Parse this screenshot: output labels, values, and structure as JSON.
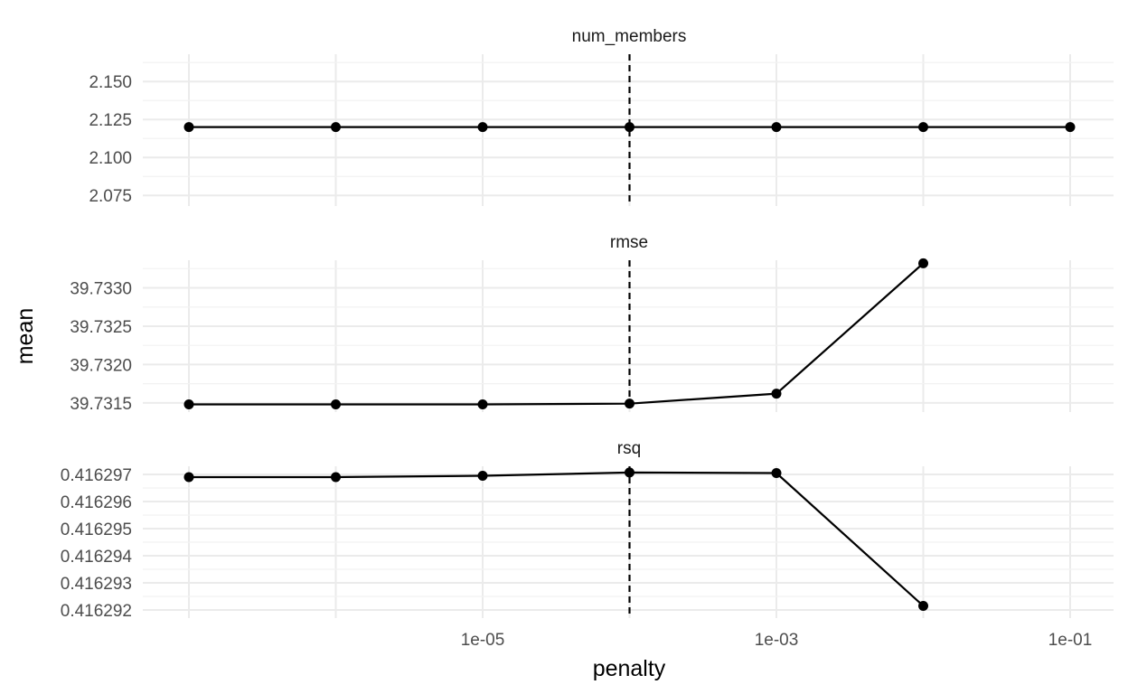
{
  "chart_data": {
    "type": "line",
    "xlabel": "penalty",
    "ylabel": "mean",
    "x_scale": "log10",
    "xlim": [
      1e-07,
      0.1
    ],
    "x_ticks": [
      {
        "value": 1e-05,
        "label": "1e-05"
      },
      {
        "value": 0.001,
        "label": "1e-03"
      },
      {
        "value": 0.1,
        "label": "1e-01"
      }
    ],
    "x": [
      1e-07,
      1e-06,
      1e-05,
      0.0001,
      0.001,
      0.01,
      0.1
    ],
    "vline": {
      "x": 0.0001,
      "style": "dashed"
    },
    "grid": true,
    "panels": [
      {
        "title": "num_members",
        "ylim": [
          2.068,
          2.168
        ],
        "y_ticks": [
          {
            "value": 2.075,
            "label": "2.075"
          },
          {
            "value": 2.1,
            "label": "2.100"
          },
          {
            "value": 2.125,
            "label": "2.125"
          },
          {
            "value": 2.15,
            "label": "2.150"
          }
        ],
        "values": [
          2.12,
          2.12,
          2.12,
          2.12,
          2.12,
          2.12,
          2.12
        ]
      },
      {
        "title": "rmse",
        "ylim": [
          39.73138,
          39.73336
        ],
        "y_ticks": [
          {
            "value": 39.7315,
            "label": "39.7315"
          },
          {
            "value": 39.732,
            "label": "39.7320"
          },
          {
            "value": 39.7325,
            "label": "39.7325"
          },
          {
            "value": 39.733,
            "label": "39.7330"
          }
        ],
        "values": [
          39.73148,
          39.73148,
          39.73148,
          39.73149,
          39.73162,
          39.73332,
          null
        ]
      },
      {
        "title": "rsq",
        "ylim": [
          0.4162917,
          0.4162973
        ],
        "y_ticks": [
          {
            "value": 0.416292,
            "label": "0.416292"
          },
          {
            "value": 0.416293,
            "label": "0.416293"
          },
          {
            "value": 0.416294,
            "label": "0.416294"
          },
          {
            "value": 0.416295,
            "label": "0.416295"
          },
          {
            "value": 0.416296,
            "label": "0.416296"
          },
          {
            "value": 0.416297,
            "label": "0.416297"
          }
        ],
        "values": [
          0.4162969,
          0.4162969,
          0.41629695,
          0.41629707,
          0.41629705,
          0.41629215,
          null
        ]
      }
    ]
  }
}
